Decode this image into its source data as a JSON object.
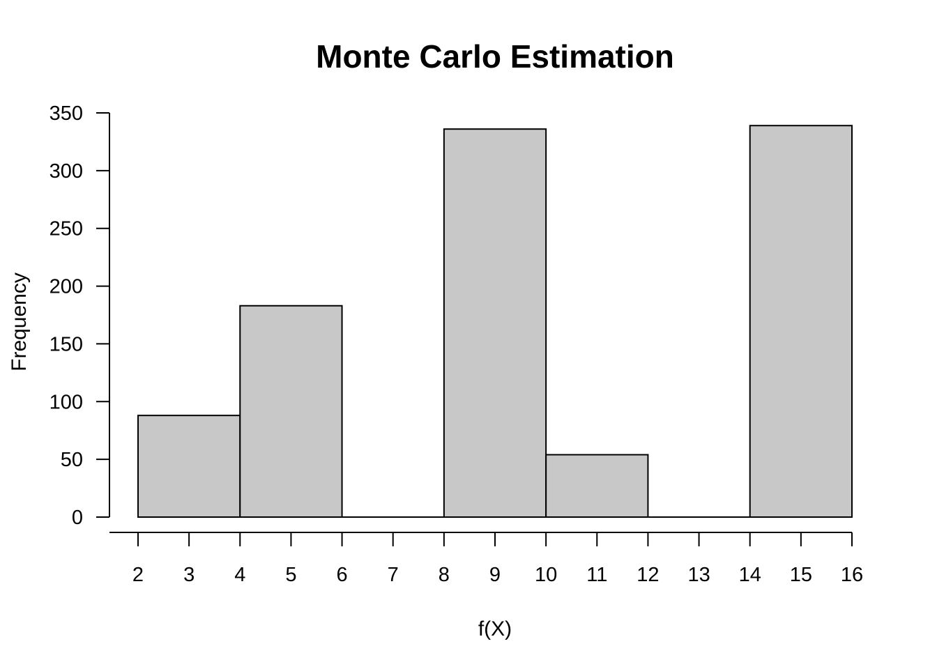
{
  "chart_data": {
    "type": "bar",
    "title": "Monte Carlo Estimation",
    "xlabel": "f(X)",
    "ylabel": "Frequency",
    "bins": [
      {
        "start": 2,
        "end": 4,
        "count": 88
      },
      {
        "start": 4,
        "end": 6,
        "count": 183
      },
      {
        "start": 6,
        "end": 8,
        "count": 0
      },
      {
        "start": 8,
        "end": 10,
        "count": 336
      },
      {
        "start": 10,
        "end": 12,
        "count": 54
      },
      {
        "start": 12,
        "end": 14,
        "count": 0
      },
      {
        "start": 14,
        "end": 16,
        "count": 339
      }
    ],
    "xlim": [
      2,
      16
    ],
    "ylim": [
      0,
      350
    ],
    "xticks": [
      2,
      3,
      4,
      5,
      6,
      7,
      8,
      9,
      10,
      11,
      12,
      13,
      14,
      15,
      16
    ],
    "yticks": [
      0,
      50,
      100,
      150,
      200,
      250,
      300,
      350
    ],
    "grid": false,
    "legend": "none"
  }
}
